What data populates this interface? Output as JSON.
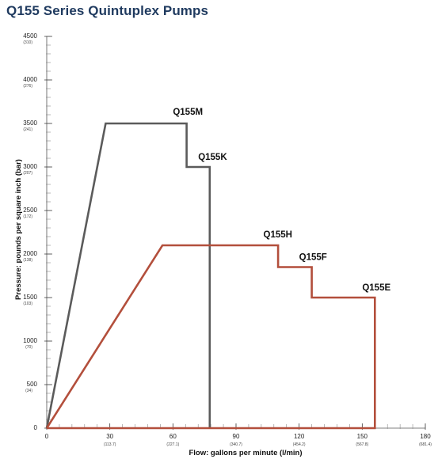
{
  "chart_data": {
    "type": "line",
    "title": "Q155 Series Quintuplex Pumps",
    "xlabel": "Flow: gallons per minute (l/min)",
    "ylabel": "Pressure: pounds per square inch (bar)",
    "xlim": [
      0,
      180
    ],
    "ylim": [
      0,
      4500
    ],
    "x_ticks": [
      {
        "value": 0,
        "label": "0",
        "sub": ""
      },
      {
        "value": 30,
        "label": "30",
        "sub": "(113.7)"
      },
      {
        "value": 60,
        "label": "60",
        "sub": "(227.1)"
      },
      {
        "value": 90,
        "label": "90",
        "sub": "(340.7)"
      },
      {
        "value": 120,
        "label": "120",
        "sub": "(454.2)"
      },
      {
        "value": 150,
        "label": "150",
        "sub": "(567.8)"
      },
      {
        "value": 180,
        "label": "180",
        "sub": "(681.4)"
      }
    ],
    "y_ticks": [
      {
        "value": 0,
        "label": "0",
        "sub": ""
      },
      {
        "value": 500,
        "label": "500",
        "sub": "(34)"
      },
      {
        "value": 1000,
        "label": "1000",
        "sub": "(70)"
      },
      {
        "value": 1500,
        "label": "1500",
        "sub": "(103)"
      },
      {
        "value": 2000,
        "label": "2000",
        "sub": "(138)"
      },
      {
        "value": 2500,
        "label": "2500",
        "sub": "(172)"
      },
      {
        "value": 3000,
        "label": "3000",
        "sub": "(207)"
      },
      {
        "value": 3500,
        "label": "3500",
        "sub": "(241)"
      },
      {
        "value": 4000,
        "label": "4000",
        "sub": "(276)"
      },
      {
        "value": 4500,
        "label": "4500",
        "sub": "(310)"
      }
    ],
    "minor_x_step": 6,
    "minor_y_step": 100,
    "grid": false,
    "series": [
      {
        "color": "#5b5b5b",
        "points": [
          [
            0,
            0
          ],
          [
            28,
            3500
          ],
          [
            66.5,
            3500
          ],
          [
            66.5,
            3000
          ],
          [
            77.5,
            3000
          ],
          [
            77.5,
            0
          ]
        ],
        "annotations": [
          {
            "text": "Q155M",
            "x": 60,
            "y": 3600
          },
          {
            "text": "Q155K",
            "x": 72,
            "y": 3080
          }
        ]
      },
      {
        "color": "#b34f3c",
        "points": [
          [
            0,
            0
          ],
          [
            55,
            2100
          ],
          [
            110,
            2100
          ],
          [
            110,
            1850
          ],
          [
            126,
            1850
          ],
          [
            126,
            1500
          ],
          [
            156,
            1500
          ],
          [
            156,
            0
          ],
          [
            0,
            0
          ]
        ],
        "annotations": [
          {
            "text": "Q155H",
            "x": 103,
            "y": 2190
          },
          {
            "text": "Q155F",
            "x": 120,
            "y": 1930
          },
          {
            "text": "Q155E",
            "x": 150,
            "y": 1580
          }
        ]
      }
    ]
  }
}
